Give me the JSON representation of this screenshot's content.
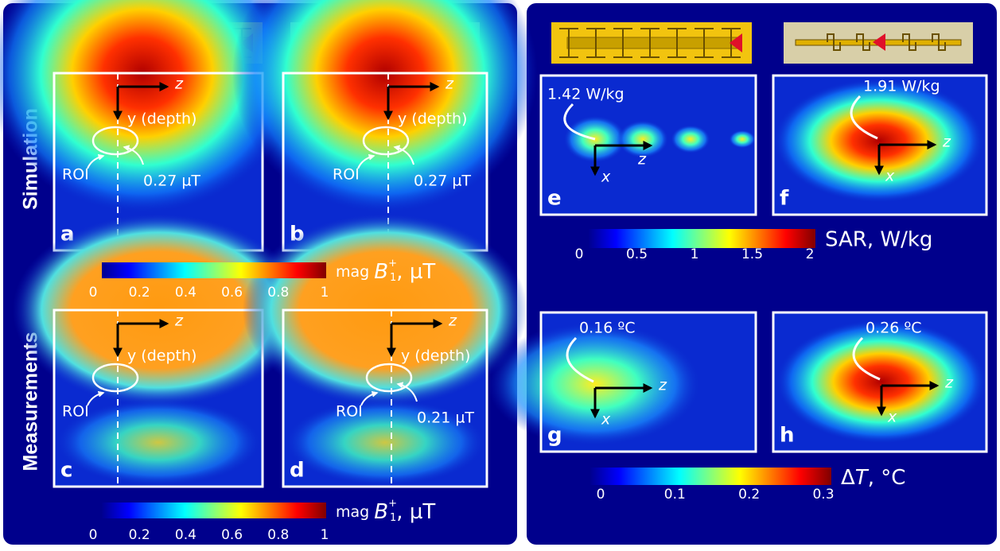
{
  "row_labels": [
    "Simulation",
    "Measurements"
  ],
  "panels": [
    {
      "letter": "a",
      "z": "z",
      "depth": "y (depth)",
      "roi": "ROI",
      "value": "0.27 µT"
    },
    {
      "letter": "b",
      "z": "z",
      "depth": "y (depth)",
      "roi": "ROI",
      "value": "0.27 µT"
    },
    {
      "letter": "c",
      "z": "z",
      "depth": "y (depth)",
      "roi": "ROI"
    },
    {
      "letter": "d",
      "z": "z",
      "depth": "y (depth)",
      "roi": "ROI",
      "value": "0.21 µT"
    },
    {
      "letter": "e",
      "value": "1.42 W/kg",
      "z": "z",
      "x": "x"
    },
    {
      "letter": "f",
      "value": "1.91 W/kg",
      "z": "z",
      "x": "x"
    },
    {
      "letter": "g",
      "value": "0.16 ºC",
      "z": "z",
      "x": "x"
    },
    {
      "letter": "h",
      "value": "0.26 ºC",
      "z": "z",
      "x": "x"
    }
  ],
  "colorbars": [
    {
      "prefix": "mag ",
      "symbol": "B",
      "sup": "+",
      "sub": "1",
      "unit": ", µT",
      "ticks": [
        "0",
        "0.2",
        "0.4",
        "0.6",
        "0.8",
        "1"
      ]
    },
    {
      "prefix": "mag ",
      "symbol": "B",
      "sup": "+",
      "sub": "1",
      "unit": ", µT",
      "ticks": [
        "0",
        "0.2",
        "0.4",
        "0.6",
        "0.8",
        "1"
      ]
    },
    {
      "label": "SAR, W/kg",
      "ticks": [
        "0",
        "0.5",
        "1",
        "1.5",
        "2"
      ]
    },
    {
      "prefix": "Δ",
      "symbol": "T",
      "unit": ", °C",
      "ticks": [
        "0",
        "0.1",
        "0.2",
        "0.3"
      ]
    }
  ]
}
